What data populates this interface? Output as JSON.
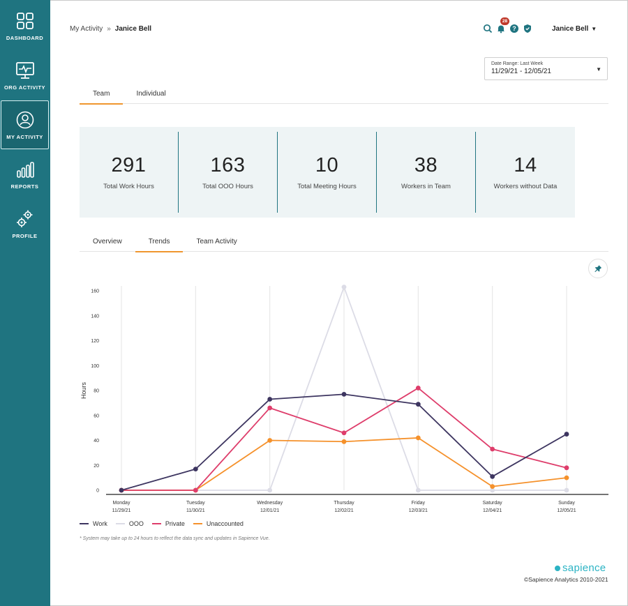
{
  "sidebar": {
    "items": [
      {
        "label": "DASHBOARD",
        "icon": "dashboard-icon",
        "active": false
      },
      {
        "label": "ORG ACTIVITY",
        "icon": "monitor-pulse-icon",
        "active": false
      },
      {
        "label": "MY ACTIVITY",
        "icon": "user-circle-icon",
        "active": true
      },
      {
        "label": "REPORTS",
        "icon": "bar-chart-icon",
        "active": false
      },
      {
        "label": "PROFILE",
        "icon": "gears-icon",
        "active": false
      }
    ]
  },
  "header": {
    "breadcrumb": {
      "parent": "My Activity",
      "separator": "»",
      "current": "Janice Bell"
    },
    "notifications_count": "28",
    "user_name": "Janice Bell",
    "user_caret": "▼"
  },
  "date_range": {
    "label": "Date Range: Last Week",
    "value": "11/29/21 - 12/05/21",
    "caret": "▼"
  },
  "main_tabs": [
    {
      "label": "Team",
      "active": true
    },
    {
      "label": "Individual",
      "active": false
    }
  ],
  "stats": [
    {
      "value": "291",
      "label": "Total Work Hours"
    },
    {
      "value": "163",
      "label": "Total OOO Hours"
    },
    {
      "value": "10",
      "label": "Total Meeting Hours"
    },
    {
      "value": "38",
      "label": "Workers in Team"
    },
    {
      "value": "14",
      "label": "Workers without Data"
    }
  ],
  "sub_tabs": [
    {
      "label": "Overview",
      "active": false
    },
    {
      "label": "Trends",
      "active": true
    },
    {
      "label": "Team Activity",
      "active": false
    }
  ],
  "chart_data": {
    "type": "line",
    "ylabel": "Hours",
    "ylim": [
      0,
      160
    ],
    "yticks": [
      0,
      20,
      40,
      60,
      80,
      100,
      120,
      140,
      160
    ],
    "categories": [
      {
        "day": "Monday",
        "date": "11/29/21"
      },
      {
        "day": "Tuesday",
        "date": "11/30/21"
      },
      {
        "day": "Wednesday",
        "date": "12/01/21"
      },
      {
        "day": "Thursday",
        "date": "12/02/21"
      },
      {
        "day": "Friday",
        "date": "12/03/21"
      },
      {
        "day": "Saturday",
        "date": "12/04/21"
      },
      {
        "day": "Sunday",
        "date": "12/05/21"
      }
    ],
    "series": [
      {
        "name": "Work",
        "color": "#3d3560",
        "values": [
          0,
          17,
          73,
          77,
          69,
          11,
          45
        ]
      },
      {
        "name": "OOO",
        "color": "#dcdce6",
        "values": [
          0,
          0,
          0,
          163,
          0,
          0,
          0
        ]
      },
      {
        "name": "Private",
        "color": "#de3d6b",
        "values": [
          0,
          0,
          66,
          46,
          82,
          33,
          18
        ]
      },
      {
        "name": "Unaccounted",
        "color": "#f5912b",
        "values": [
          0,
          0,
          40,
          39,
          42,
          3,
          10
        ]
      }
    ],
    "grid": "vertical",
    "legend_position": "bottom-left"
  },
  "note": "* System may take up to 24 hours to reflect the data sync and updates in Sapience Vue.",
  "footer": {
    "brand": "sapience",
    "copyright": "©Sapience Analytics 2010-2021"
  },
  "colors": {
    "sidebar": "#1f7480",
    "accent": "#f0962e",
    "brand": "#2bb3c4"
  }
}
